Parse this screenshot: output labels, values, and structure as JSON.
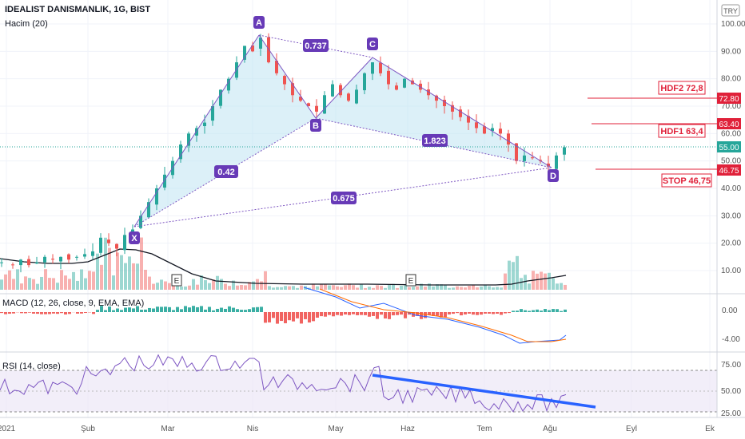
{
  "header": {
    "symbol_title": "IDEALIST DANISMANLIK, 1G, BIST",
    "volume_label": "Hacim (20)",
    "currency_badge": "TRY"
  },
  "macd": {
    "label": "MACD (12, 26, close, 9, EMA, EMA)"
  },
  "rsi": {
    "label": "RSI (14, close)"
  },
  "earnings_marker_label": "E",
  "colors": {
    "up": "#26a69a",
    "down": "#ef5350",
    "pattern_fill": "#bfe3f2",
    "pattern_line": "#7e57c2",
    "level": "#e0213a",
    "trend": "#2962ff"
  },
  "chart_data": {
    "type": "candlestick",
    "price_axis": {
      "ticks": [
        "100.00",
        "90.00",
        "80.00",
        "70.00",
        "60.00",
        "50.00",
        "40.00",
        "30.00",
        "20.00",
        "10.00"
      ],
      "ylim": [
        0,
        100
      ]
    },
    "macd_axis": {
      "ticks": [
        "0.00",
        "-4.00"
      ]
    },
    "rsi_axis": {
      "ticks": [
        "75.00",
        "50.00",
        "25.00"
      ]
    },
    "time_axis": {
      "ticks": [
        "2021",
        "Şub",
        "Mar",
        "Nis",
        "May",
        "Haz",
        "Tem",
        "Ağu",
        "Eyl",
        "Ek"
      ]
    },
    "harmonic_pattern": {
      "points": [
        {
          "label": "X",
          "value": 25
        },
        {
          "label": "A",
          "value": 96
        },
        {
          "label": "B",
          "value": 68
        },
        {
          "label": "C",
          "value": 88
        },
        {
          "label": "D",
          "value": 47
        }
      ],
      "ratios": [
        "0.737",
        "0.42",
        "1.823",
        "0.675"
      ]
    },
    "levels": [
      {
        "label": "HDF2 72,8",
        "tag": "72.80",
        "value": 72.8
      },
      {
        "label": "HDF1 63,4",
        "tag": "63.40",
        "value": 63.4
      },
      {
        "label": "STOP 46,75",
        "tag": "46.75",
        "value": 46.75
      }
    ],
    "last_price": {
      "tag": "55.00",
      "value": 55
    }
  }
}
